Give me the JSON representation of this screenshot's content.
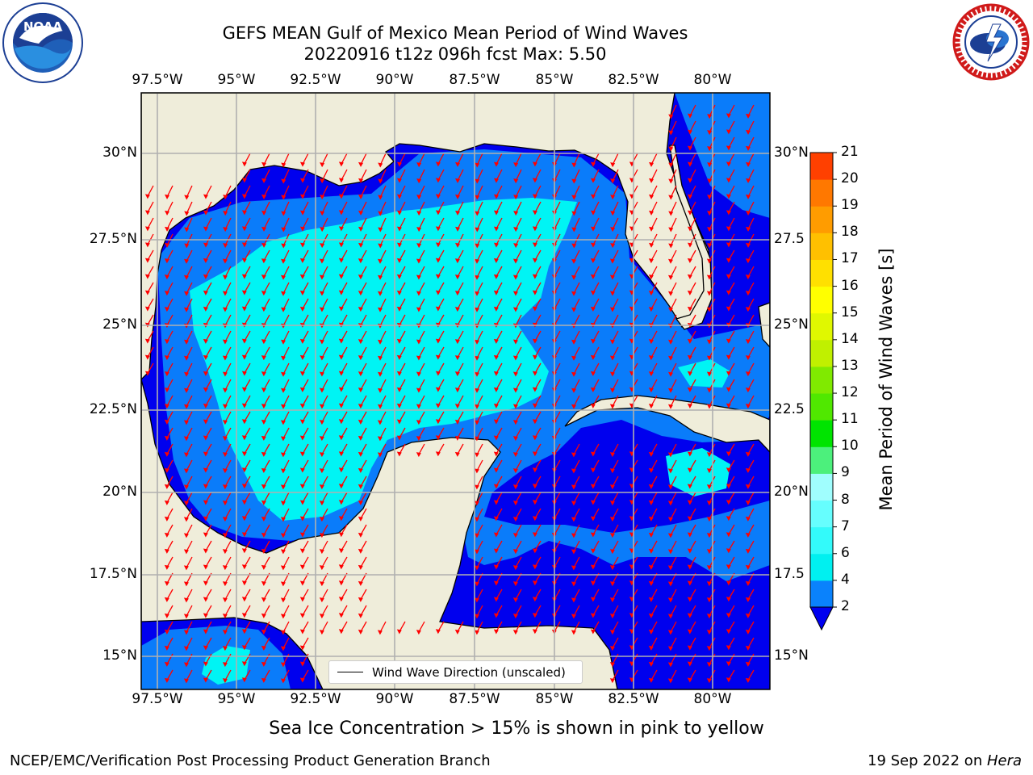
{
  "title": {
    "line1": "GEFS MEAN Gulf of Mexico Mean Period of Wind Waves",
    "line2": "20220916 t12z 096h fcst   Max: 5.50"
  },
  "logos": {
    "left_text": "NOAA",
    "left_ring": "NATIONAL OCEANIC AND ATMOSPHERIC ADMINISTRATION · U.S. DEPARTMENT OF COMMERCE",
    "right_ring": "NATIONAL WEATHER SERVICE"
  },
  "axes": {
    "lon_labels": [
      "97.5°W",
      "95°W",
      "92.5°W",
      "90°W",
      "87.5°W",
      "85°W",
      "82.5°W",
      "80°W"
    ],
    "lat_labels_left": [
      "30°N",
      "27.5°N",
      "25°N",
      "22.5°N",
      "20°N",
      "17.5°N",
      "15°N"
    ],
    "lat_labels_right": [
      "30°N",
      "27.5",
      "25°N",
      "22.5",
      "20°N",
      "17.5",
      "15°N"
    ]
  },
  "colorbar": {
    "label": "Mean Period of Wind Waves [s]",
    "ticks": [
      "2",
      "4",
      "6",
      "7",
      "8",
      "9",
      "10",
      "11",
      "12",
      "13",
      "14",
      "15",
      "16",
      "17",
      "18",
      "19",
      "20",
      "21"
    ],
    "colors": [
      "#0a82fc",
      "#00f0f0",
      "#33fafa",
      "#66fefe",
      "#a0fefe",
      "#4cf07c",
      "#00e400",
      "#50e800",
      "#80ea00",
      "#c0f000",
      "#e0f800",
      "#ffff00",
      "#ffe000",
      "#ffc000",
      "#ff9c00",
      "#ff7800",
      "#ff4000",
      "#ff0000"
    ],
    "extend_color": "#0000f0"
  },
  "legend": {
    "label": "Wind Wave Direction (unscaled)"
  },
  "map_colors": {
    "land": "#efedda",
    "deep": "#0000ee",
    "mid": "#0a7cfa",
    "light": "#00f4f4",
    "arrow": "#ff0000"
  },
  "note": "Sea Ice Concentration > 15% is shown in pink to yellow",
  "footer": {
    "left": "NCEP/EMC/Verification Post Processing Product Generation Branch",
    "right_date": "19 Sep 2022 on ",
    "right_host": "Hera"
  }
}
